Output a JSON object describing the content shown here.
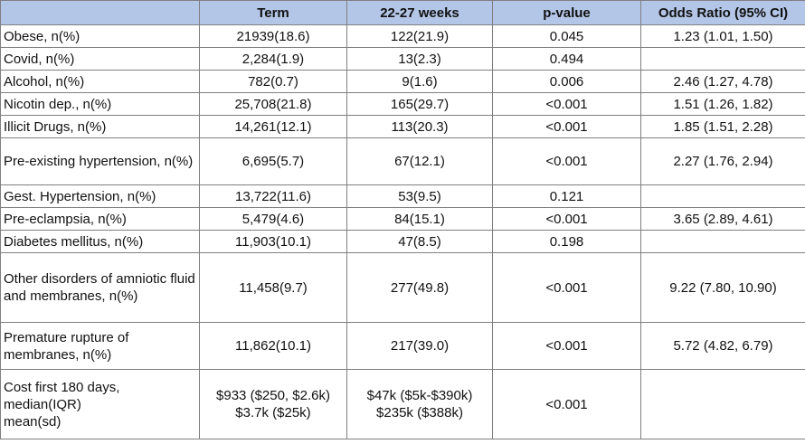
{
  "headers": [
    "",
    "Term",
    "22-27 weeks",
    "p-value",
    "Odds Ratio (95% CI)"
  ],
  "rows": [
    {
      "label": "Obese, n(%)",
      "term": "21939(18.6)",
      "weeks": "122(21.9)",
      "p": "0.045",
      "or": "1.23 (1.01, 1.50)"
    },
    {
      "label": "Covid, n(%)",
      "term": "2,284(1.9)",
      "weeks": "13(2.3)",
      "p": "0.494",
      "or": ""
    },
    {
      "label": "Alcohol, n(%)",
      "term": "782(0.7)",
      "weeks": "9(1.6)",
      "p": "0.006",
      "or": "2.46 (1.27, 4.78)"
    },
    {
      "label": "Nicotin dep., n(%)",
      "term": "25,708(21.8)",
      "weeks": "165(29.7)",
      "p": "<0.001",
      "or": "1.51 (1.26, 1.82)"
    },
    {
      "label": "Illicit Drugs, n(%)",
      "term": "14,261(12.1)",
      "weeks": "113(20.3)",
      "p": "<0.001",
      "or": "1.85 (1.51, 2.28)"
    },
    {
      "label": "Pre-existing hypertension, n(%)",
      "term": "6,695(5.7)",
      "weeks": "67(12.1)",
      "p": "<0.001",
      "or": "2.27 (1.76, 2.94)"
    },
    {
      "label": "Gest. Hypertension, n(%)",
      "term": "13,722(11.6)",
      "weeks": "53(9.5)",
      "p": "0.121",
      "or": ""
    },
    {
      "label": "Pre-eclampsia, n(%)",
      "term": "5,479(4.6)",
      "weeks": "84(15.1)",
      "p": "<0.001",
      "or": "3.65 (2.89, 4.61)"
    },
    {
      "label": "Diabetes mellitus, n(%)",
      "term": "11,903(10.1)",
      "weeks": "47(8.5)",
      "p": "0.198",
      "or": ""
    },
    {
      "label": "Other disorders of amniotic fluid and membranes, n(%)",
      "term": "11,458(9.7)",
      "weeks": "277(49.8)",
      "p": "<0.001",
      "or": "9.22 (7.80, 10.90)"
    },
    {
      "label": "Premature rupture of membranes, n(%)",
      "term": "11,862(10.1)",
      "weeks": "217(39.0)",
      "p": "<0.001",
      "or": "5.72 (4.82, 6.79)"
    }
  ],
  "cost_row": {
    "label_lines": [
      "Cost first 180 days,",
      "median(IQR)",
      "mean(sd)"
    ],
    "term_lines": [
      "$933 ($250, $2.6k)",
      "$3.7k ($25k)"
    ],
    "weeks_lines": [
      "$47k ($5k-$390k)",
      "$235k ($388k)"
    ],
    "p": "<0.001",
    "or": ""
  }
}
